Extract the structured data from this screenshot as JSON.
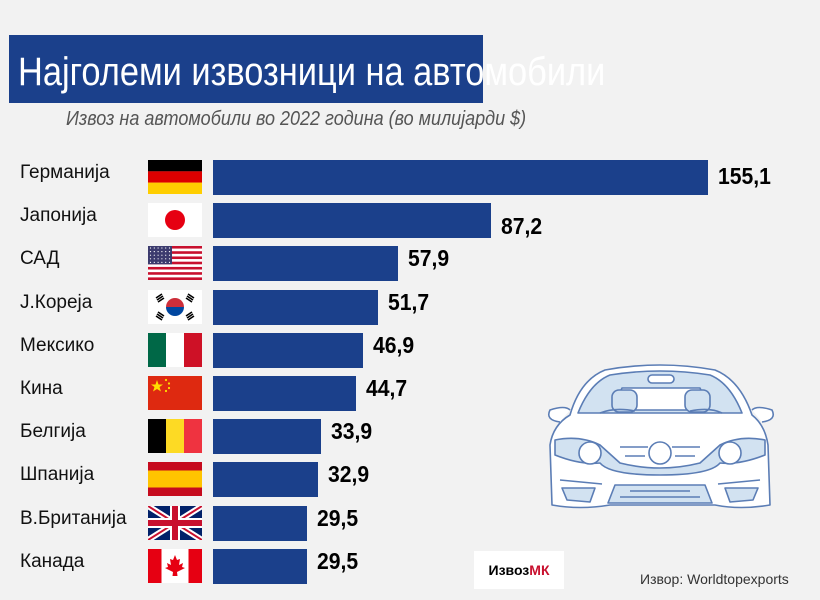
{
  "title": "Најголеми извозници на автомобили",
  "subtitle": "Извоз на автомобили во 2022 година (во милијарди $)",
  "logo": {
    "part1": "Извоз",
    "part2": "МК"
  },
  "source": "Извор: Worldtopexports",
  "colors": {
    "bar": "#1b408b",
    "title_bg": "#1b408b",
    "logo_accent": "#c8102e"
  },
  "chart_data": {
    "type": "bar",
    "orientation": "horizontal",
    "title": "Најголеми извозници на автомобили",
    "subtitle": "Извоз на автомобили во 2022 година (во милијарди $)",
    "xlabel": "",
    "ylabel": "",
    "xlim": [
      0,
      155.1
    ],
    "grid": false,
    "legend": "none",
    "categories": [
      "Германија",
      "Јапонија",
      "САД",
      "Ј.Кореја",
      "Мексико",
      "Кина",
      "Белгија",
      "Шпанија",
      "В.Британија",
      "Канада"
    ],
    "flags": [
      "germany",
      "japan",
      "usa",
      "south-korea",
      "mexico",
      "china",
      "belgium",
      "spain",
      "uk",
      "canada"
    ],
    "values": [
      155.1,
      87.2,
      57.9,
      51.7,
      46.9,
      44.7,
      33.9,
      32.9,
      29.5,
      29.5
    ],
    "labels": [
      "155,1",
      "87,2",
      "57,9",
      "51,7",
      "46,9",
      "44,7",
      "33,9",
      "32,9",
      "29,5",
      "29,5"
    ]
  }
}
